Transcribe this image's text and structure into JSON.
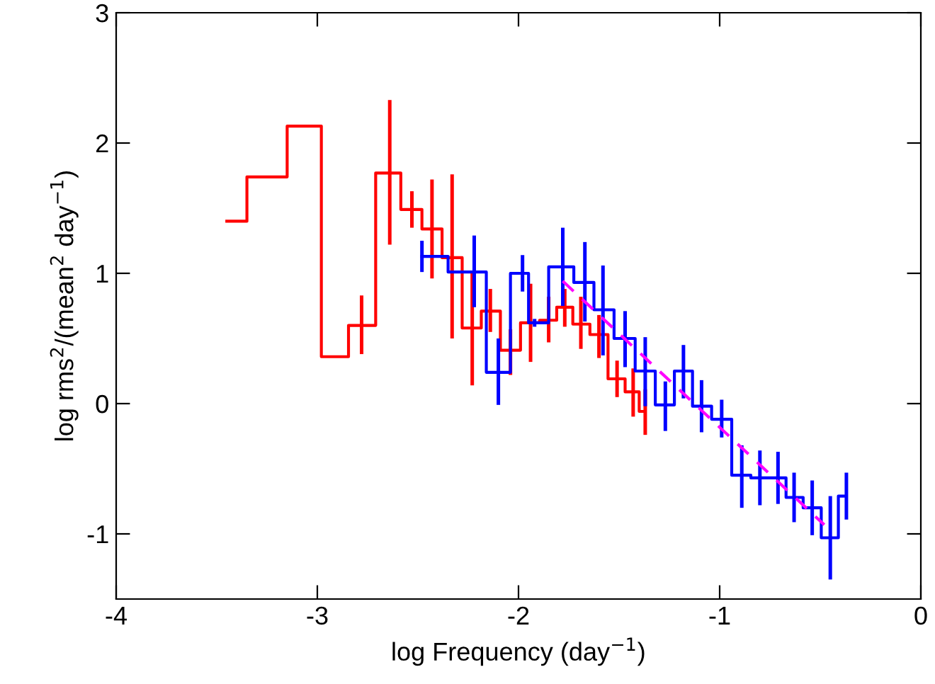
{
  "chart_data": {
    "type": "step",
    "xlabel": "log Frequency (day$^{−1}$)",
    "ylabel": "log rms$^{2}$/(mean$^{2}$ day$^{−1}$)",
    "xlim": [
      -4,
      0
    ],
    "xticks": [
      -4,
      -3,
      -2,
      -1,
      0
    ],
    "ylim": [
      -1.5,
      3
    ],
    "yticks": [
      -1,
      0,
      1,
      2,
      3
    ],
    "grid": false,
    "legend": false,
    "series": [
      {
        "color": "#ff0000",
        "x": [
          -3.45,
          -3.25,
          -3.05,
          -2.91,
          -2.78,
          -2.64,
          -2.53,
          -2.43,
          -2.33,
          -2.23,
          -2.14,
          -2.04,
          -1.94,
          -1.85,
          -1.77,
          -1.69,
          -1.6,
          -1.51,
          -1.43,
          -1.37
        ],
        "values": [
          1.4,
          1.74,
          2.13,
          0.36,
          0.6,
          1.77,
          1.49,
          1.34,
          1.12,
          0.58,
          0.71,
          0.41,
          0.62,
          0.64,
          0.74,
          0.61,
          0.53,
          0.19,
          0.09,
          -0.06
        ],
        "errors": [
          null,
          null,
          null,
          null,
          [
            0.38,
            0.83
          ],
          [
            1.22,
            2.33
          ],
          [
            1.35,
            1.63
          ],
          [
            0.96,
            1.72
          ],
          [
            0.5,
            1.76
          ],
          [
            0.14,
            1.01
          ],
          [
            0.55,
            0.88
          ],
          [
            0.22,
            0.57
          ],
          [
            0.32,
            0.92
          ],
          [
            0.47,
            0.82
          ],
          [
            0.59,
            0.88
          ],
          [
            0.42,
            0.82
          ],
          [
            0.35,
            0.68
          ],
          [
            0.05,
            0.33
          ],
          [
            -0.1,
            0.27
          ],
          [
            -0.24,
            0.11
          ]
        ]
      },
      {
        "color": "#0000ff",
        "x": [
          -2.48,
          -2.22,
          -2.1,
          -1.98,
          -1.92,
          -1.78,
          -1.67,
          -1.58,
          -1.47,
          -1.37,
          -1.27,
          -1.18,
          -1.09,
          -0.99,
          -0.89,
          -0.8,
          -0.71,
          -0.63,
          -0.54,
          -0.45,
          -0.37
        ],
        "values": [
          1.13,
          1.01,
          0.24,
          1.0,
          0.62,
          1.05,
          0.93,
          0.72,
          0.5,
          0.25,
          -0.01,
          0.25,
          -0.02,
          -0.12,
          -0.55,
          -0.57,
          -0.57,
          -0.72,
          -0.8,
          -1.03,
          -0.71
        ],
        "errors": [
          [
            1.01,
            1.25
          ],
          [
            0.74,
            1.29
          ],
          [
            -0.01,
            0.5
          ],
          [
            0.86,
            1.14
          ],
          [
            0.59,
            0.65
          ],
          [
            0.75,
            1.35
          ],
          [
            0.63,
            1.24
          ],
          [
            0.37,
            1.06
          ],
          [
            0.28,
            0.71
          ],
          [
            -0.02,
            0.51
          ],
          [
            -0.21,
            0.17
          ],
          [
            0.04,
            0.45
          ],
          [
            -0.22,
            0.18
          ],
          [
            -0.26,
            0.03
          ],
          [
            -0.8,
            -0.32
          ],
          [
            -0.78,
            -0.36
          ],
          [
            -0.77,
            -0.37
          ],
          [
            -0.91,
            -0.53
          ],
          [
            -1.01,
            -0.59
          ],
          [
            -1.35,
            -0.71
          ],
          [
            -0.89,
            -0.53
          ]
        ]
      },
      {
        "type": "line",
        "color": "#ff00ff",
        "line_style": "dashed",
        "x": [
          -1.78,
          -0.48
        ],
        "values": [
          0.94,
          -0.93
        ]
      }
    ]
  }
}
